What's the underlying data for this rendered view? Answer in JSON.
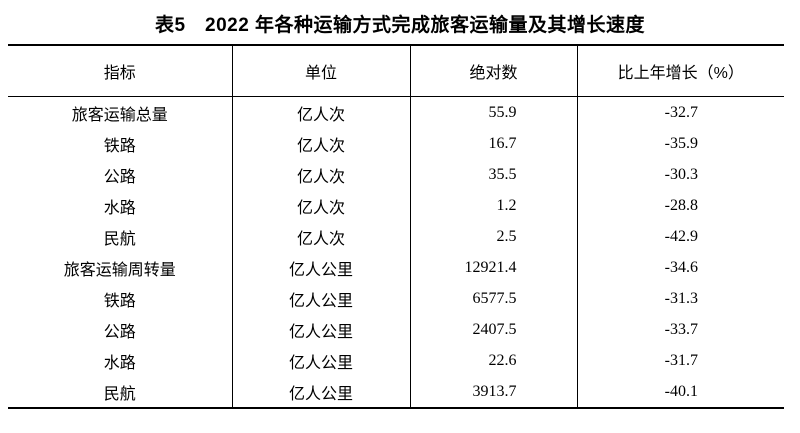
{
  "page": {
    "background_color": "#ffffff",
    "text_color": "#000000",
    "border_color": "#000000"
  },
  "title": "表5　2022 年各种运输方式完成旅客运输量及其增长速度",
  "table": {
    "columns": {
      "indicator": "指标",
      "unit": "单位",
      "value": "绝对数",
      "growth": "比上年增长（%）"
    },
    "rows": [
      {
        "indicator": "旅客运输总量",
        "unit": "亿人次",
        "value": "55.9",
        "growth": "-32.7"
      },
      {
        "indicator": "铁路",
        "unit": "亿人次",
        "value": "16.7",
        "growth": "-35.9"
      },
      {
        "indicator": "公路",
        "unit": "亿人次",
        "value": "35.5",
        "growth": "-30.3"
      },
      {
        "indicator": "水路",
        "unit": "亿人次",
        "value": "1.2",
        "growth": "-28.8"
      },
      {
        "indicator": "民航",
        "unit": "亿人次",
        "value": "2.5",
        "growth": "-42.9"
      },
      {
        "indicator": "旅客运输周转量",
        "unit": "亿人公里",
        "value": "12921.4",
        "growth": "-34.6"
      },
      {
        "indicator": "铁路",
        "unit": "亿人公里",
        "value": "6577.5",
        "growth": "-31.3"
      },
      {
        "indicator": "公路",
        "unit": "亿人公里",
        "value": "2407.5",
        "growth": "-33.7"
      },
      {
        "indicator": "水路",
        "unit": "亿人公里",
        "value": "22.6",
        "growth": "-31.7"
      },
      {
        "indicator": "民航",
        "unit": "亿人公里",
        "value": "3913.7",
        "growth": "-40.1"
      }
    ]
  }
}
